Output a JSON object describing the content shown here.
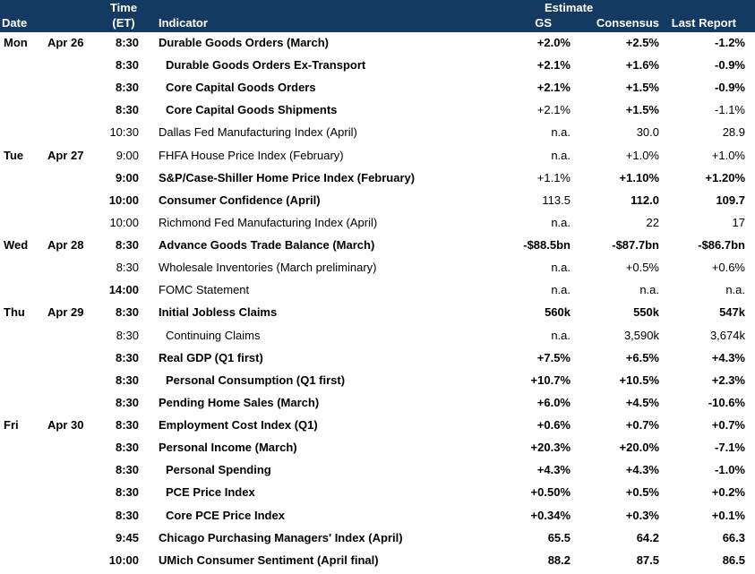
{
  "header": {
    "date": "Date",
    "time_line1": "Time",
    "time_line2": "(ET)",
    "indicator": "Indicator",
    "estimate": "Estimate",
    "gs": "GS",
    "consensus": "Consensus",
    "last_report": "Last Report"
  },
  "rows": [
    {
      "day": "Mon",
      "date": "Apr 26",
      "time": "8:30",
      "time_bold": true,
      "indicator": "Durable Goods Orders (March)",
      "ind_bold": true,
      "sub": false,
      "gs": "+2.0%",
      "gs_bold": true,
      "cons": "+2.5%",
      "cons_bold": true,
      "last": "-1.2%",
      "last_bold": true
    },
    {
      "day": "",
      "date": "",
      "time": "8:30",
      "time_bold": true,
      "indicator": "Durable Goods Orders Ex-Transport",
      "ind_bold": true,
      "sub": true,
      "gs": "+2.1%",
      "gs_bold": true,
      "cons": "+1.6%",
      "cons_bold": true,
      "last": "-0.9%",
      "last_bold": true
    },
    {
      "day": "",
      "date": "",
      "time": "8:30",
      "time_bold": true,
      "indicator": "Core Capital Goods Orders",
      "ind_bold": true,
      "sub": true,
      "gs": "+2.1%",
      "gs_bold": true,
      "cons": "+1.5%",
      "cons_bold": true,
      "last": "-0.9%",
      "last_bold": true
    },
    {
      "day": "",
      "date": "",
      "time": "8:30",
      "time_bold": true,
      "indicator": "Core Capital Goods Shipments",
      "ind_bold": true,
      "sub": true,
      "gs": "+2.1%",
      "gs_bold": false,
      "cons": "+1.5%",
      "cons_bold": true,
      "last": "-1.1%",
      "last_bold": false
    },
    {
      "day": "",
      "date": "",
      "time": "10:30",
      "time_bold": false,
      "indicator": "Dallas Fed Manufacturing Index (April)",
      "ind_bold": false,
      "sub": false,
      "gs": "n.a.",
      "gs_bold": false,
      "cons": "30.0",
      "cons_bold": false,
      "last": "28.9",
      "last_bold": false
    },
    {
      "day": "Tue",
      "date": "Apr 27",
      "time": "9:00",
      "time_bold": false,
      "indicator": "FHFA House Price Index (February)",
      "ind_bold": false,
      "sub": false,
      "gs": "n.a.",
      "gs_bold": false,
      "cons": "+1.0%",
      "cons_bold": false,
      "last": "+1.0%",
      "last_bold": false
    },
    {
      "day": "",
      "date": "",
      "time": "9:00",
      "time_bold": true,
      "indicator": "S&P/Case-Shiller Home Price Index (February)",
      "ind_bold": true,
      "sub": false,
      "gs": "+1.1%",
      "gs_bold": false,
      "cons": "+1.10%",
      "cons_bold": true,
      "last": "+1.20%",
      "last_bold": true
    },
    {
      "day": "",
      "date": "",
      "time": "10:00",
      "time_bold": true,
      "indicator": "Consumer Confidence (April)",
      "ind_bold": true,
      "sub": false,
      "gs": "113.5",
      "gs_bold": false,
      "cons": "112.0",
      "cons_bold": true,
      "last": "109.7",
      "last_bold": true
    },
    {
      "day": "",
      "date": "",
      "time": "10:00",
      "time_bold": false,
      "indicator": "Richmond Fed Manufacturing Index (April)",
      "ind_bold": false,
      "sub": false,
      "gs": "n.a.",
      "gs_bold": false,
      "cons": "22",
      "cons_bold": false,
      "last": "17",
      "last_bold": false
    },
    {
      "day": "Wed",
      "date": "Apr 28",
      "time": "8:30",
      "time_bold": true,
      "indicator": "Advance Goods Trade Balance (March)",
      "ind_bold": true,
      "sub": false,
      "gs": "-$88.5bn",
      "gs_bold": true,
      "cons": "-$87.7bn",
      "cons_bold": true,
      "last": "-$86.7bn",
      "last_bold": true
    },
    {
      "day": "",
      "date": "",
      "time": "8:30",
      "time_bold": false,
      "indicator": "Wholesale Inventories (March preliminary)",
      "ind_bold": false,
      "sub": false,
      "gs": "n.a.",
      "gs_bold": false,
      "cons": "+0.5%",
      "cons_bold": false,
      "last": "+0.6%",
      "last_bold": false
    },
    {
      "day": "",
      "date": "",
      "time": "14:00",
      "time_bold": true,
      "indicator": "FOMC Statement",
      "ind_bold": false,
      "sub": false,
      "gs": "n.a.",
      "gs_bold": false,
      "cons": "n.a.",
      "cons_bold": false,
      "last": "n.a.",
      "last_bold": false
    },
    {
      "day": "Thu",
      "date": "Apr 29",
      "time": "8:30",
      "time_bold": true,
      "indicator": "Initial Jobless Claims",
      "ind_bold": true,
      "sub": false,
      "gs": "560k",
      "gs_bold": true,
      "cons": "550k",
      "cons_bold": true,
      "last": "547k",
      "last_bold": true
    },
    {
      "day": "",
      "date": "",
      "time": "8:30",
      "time_bold": false,
      "indicator": "Continuing Claims",
      "ind_bold": false,
      "sub": true,
      "gs": "n.a.",
      "gs_bold": false,
      "cons": "3,590k",
      "cons_bold": false,
      "last": "3,674k",
      "last_bold": false
    },
    {
      "day": "",
      "date": "",
      "time": "8:30",
      "time_bold": true,
      "indicator": "Real GDP (Q1 first)",
      "ind_bold": true,
      "sub": false,
      "gs": "+7.5%",
      "gs_bold": true,
      "cons": "+6.5%",
      "cons_bold": true,
      "last": "+4.3%",
      "last_bold": true
    },
    {
      "day": "",
      "date": "",
      "time": "8:30",
      "time_bold": true,
      "indicator": "Personal Consumption (Q1 first)",
      "ind_bold": true,
      "sub": true,
      "gs": "+10.7%",
      "gs_bold": true,
      "cons": "+10.5%",
      "cons_bold": true,
      "last": "+2.3%",
      "last_bold": true
    },
    {
      "day": "",
      "date": "",
      "time": "8:30",
      "time_bold": true,
      "indicator": "Pending Home Sales (March)",
      "ind_bold": true,
      "sub": false,
      "gs": "+6.0%",
      "gs_bold": true,
      "cons": "+4.5%",
      "cons_bold": true,
      "last": "-10.6%",
      "last_bold": true
    },
    {
      "day": "Fri",
      "date": "Apr 30",
      "time": "8:30",
      "time_bold": true,
      "indicator": "Employment Cost Index (Q1)",
      "ind_bold": true,
      "sub": false,
      "gs": "+0.6%",
      "gs_bold": true,
      "cons": "+0.7%",
      "cons_bold": true,
      "last": "+0.7%",
      "last_bold": true
    },
    {
      "day": "",
      "date": "",
      "time": "8:30",
      "time_bold": true,
      "indicator": "Personal Income (March)",
      "ind_bold": true,
      "sub": false,
      "gs": "+20.3%",
      "gs_bold": true,
      "cons": "+20.0%",
      "cons_bold": true,
      "last": "-7.1%",
      "last_bold": true
    },
    {
      "day": "",
      "date": "",
      "time": "8:30",
      "time_bold": true,
      "indicator": "Personal Spending",
      "ind_bold": true,
      "sub": true,
      "gs": "+4.3%",
      "gs_bold": true,
      "cons": "+4.3%",
      "cons_bold": true,
      "last": "-1.0%",
      "last_bold": true
    },
    {
      "day": "",
      "date": "",
      "time": "8:30",
      "time_bold": true,
      "indicator": "PCE Price Index",
      "ind_bold": true,
      "sub": true,
      "gs": "+0.50%",
      "gs_bold": true,
      "cons": "+0.5%",
      "cons_bold": true,
      "last": "+0.2%",
      "last_bold": true
    },
    {
      "day": "",
      "date": "",
      "time": "8:30",
      "time_bold": true,
      "indicator": "Core PCE Price Index",
      "ind_bold": true,
      "sub": true,
      "gs": "+0.34%",
      "gs_bold": true,
      "cons": "+0.3%",
      "cons_bold": true,
      "last": "+0.1%",
      "last_bold": true
    },
    {
      "day": "",
      "date": "",
      "time": "9:45",
      "time_bold": true,
      "indicator": "Chicago Purchasing Managers' Index (April)",
      "ind_bold": true,
      "sub": false,
      "gs": "65.5",
      "gs_bold": true,
      "cons": "64.2",
      "cons_bold": true,
      "last": "66.3",
      "last_bold": true
    },
    {
      "day": "",
      "date": "",
      "time": "10:00",
      "time_bold": true,
      "indicator": "UMich Consumer Sentiment (April final)",
      "ind_bold": true,
      "sub": false,
      "gs": "88.2",
      "gs_bold": true,
      "cons": "87.5",
      "cons_bold": true,
      "last": "86.5",
      "last_bold": true
    }
  ]
}
